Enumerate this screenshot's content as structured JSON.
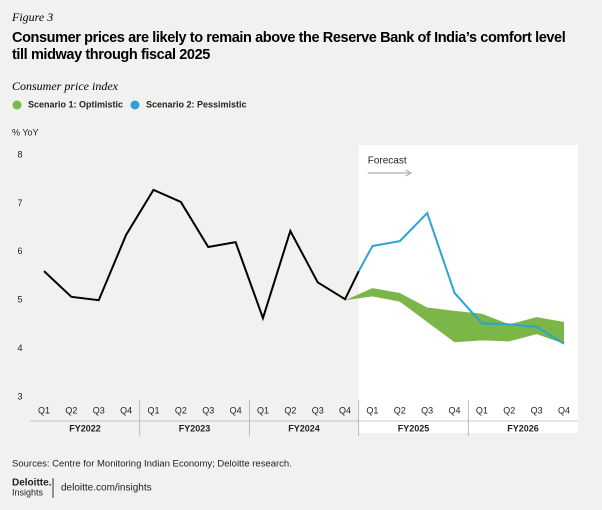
{
  "figure_label": "Figure 3",
  "chart_data": {
    "type": "line",
    "title": "Consumer prices are likely to remain above the Reserve Bank of India’s comfort level till midway through fiscal 2025",
    "subtitle": "Consumer price index",
    "y_label": "% YoY",
    "annotation": "Forecast",
    "categories": [
      "Q1",
      "Q2",
      "Q3",
      "Q4",
      "Q1",
      "Q2",
      "Q3",
      "Q4",
      "Q1",
      "Q2",
      "Q3",
      "Q4",
      "Q1",
      "Q2",
      "Q3",
      "Q4",
      "Q1",
      "Q2",
      "Q3",
      "Q4"
    ],
    "groups": [
      "FY2022",
      "FY2023",
      "FY2024",
      "FY2025",
      "FY2026"
    ],
    "ylim": [
      3,
      8
    ],
    "yticks": [
      3,
      4,
      5,
      6,
      7,
      8
    ],
    "series": [
      {
        "color": "#000000",
        "x": [
          0,
          1,
          2,
          3,
          4,
          5,
          6,
          7,
          8,
          9,
          10,
          11,
          11.5
        ],
        "values": [
          5.6,
          5.07,
          5.0,
          6.35,
          7.28,
          7.03,
          6.1,
          6.2,
          4.63,
          6.43,
          5.37,
          5.02,
          5.6
        ]
      },
      {
        "name": "Scenario 2: Pessimistic",
        "color": "#2aa4d5",
        "x": [
          11.5,
          12,
          13,
          14,
          15,
          16,
          17,
          18,
          19
        ],
        "values": [
          5.6,
          6.12,
          6.22,
          6.8,
          5.15,
          4.52,
          4.5,
          4.45,
          4.1
        ]
      }
    ],
    "band": {
      "name": "Scenario 1: Optimistic",
      "color": "#7ab648",
      "x": [
        11,
        12,
        13,
        14,
        15,
        16,
        17,
        18,
        19
      ],
      "upper": [
        5.0,
        5.25,
        5.15,
        4.85,
        4.78,
        4.72,
        4.5,
        4.65,
        4.55
      ],
      "lower": [
        5.0,
        5.08,
        4.97,
        4.55,
        4.13,
        4.17,
        4.15,
        4.3,
        4.1
      ]
    },
    "source": "Sources: Centre for Monitoring Indian Economy; Deloitte research."
  },
  "footer": {
    "brand": "Deloitte.",
    "brand_sub": "Insights",
    "url": "deloitte.com/insights"
  }
}
